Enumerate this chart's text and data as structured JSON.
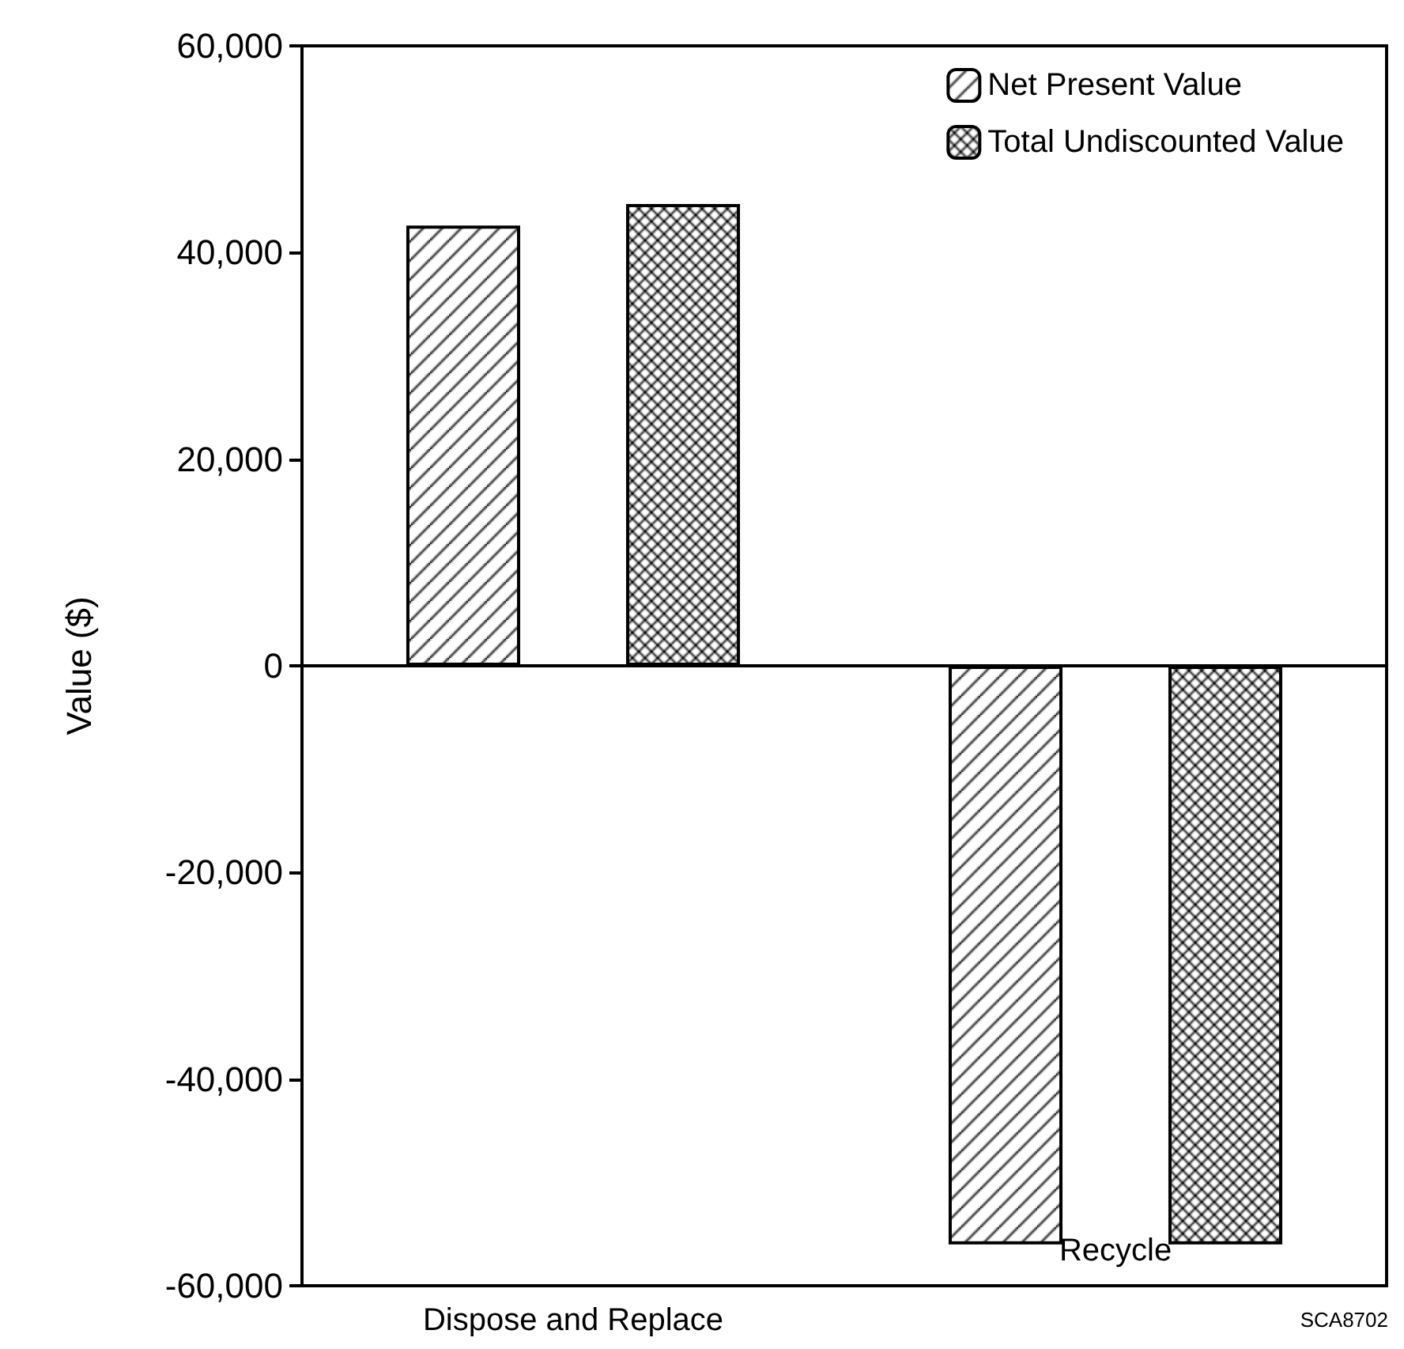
{
  "chart_data": {
    "type": "bar",
    "ylabel": "Value ($)",
    "categories": [
      "Dispose and Replace",
      "Recycle"
    ],
    "series": [
      {
        "name": "Net Present Value",
        "color": "#000000",
        "values": [
          42600,
          -56000
        ]
      },
      {
        "name": "Total Undiscounted Value",
        "color": "#000000",
        "values": [
          44700,
          -56000
        ]
      }
    ],
    "ylim": [
      -60000,
      60000
    ],
    "yticks": [
      {
        "value": -60000,
        "label": "-60,000"
      },
      {
        "value": -40000,
        "label": "-40,000"
      },
      {
        "value": -20000,
        "label": "-20,000"
      },
      0,
      {
        "value": 20000,
        "label": "20,000"
      },
      {
        "value": 40000,
        "label": "40,000"
      },
      {
        "value": 60000,
        "label": "60,000"
      }
    ],
    "legend": "top right",
    "annotations": [
      "SCA8702"
    ]
  }
}
